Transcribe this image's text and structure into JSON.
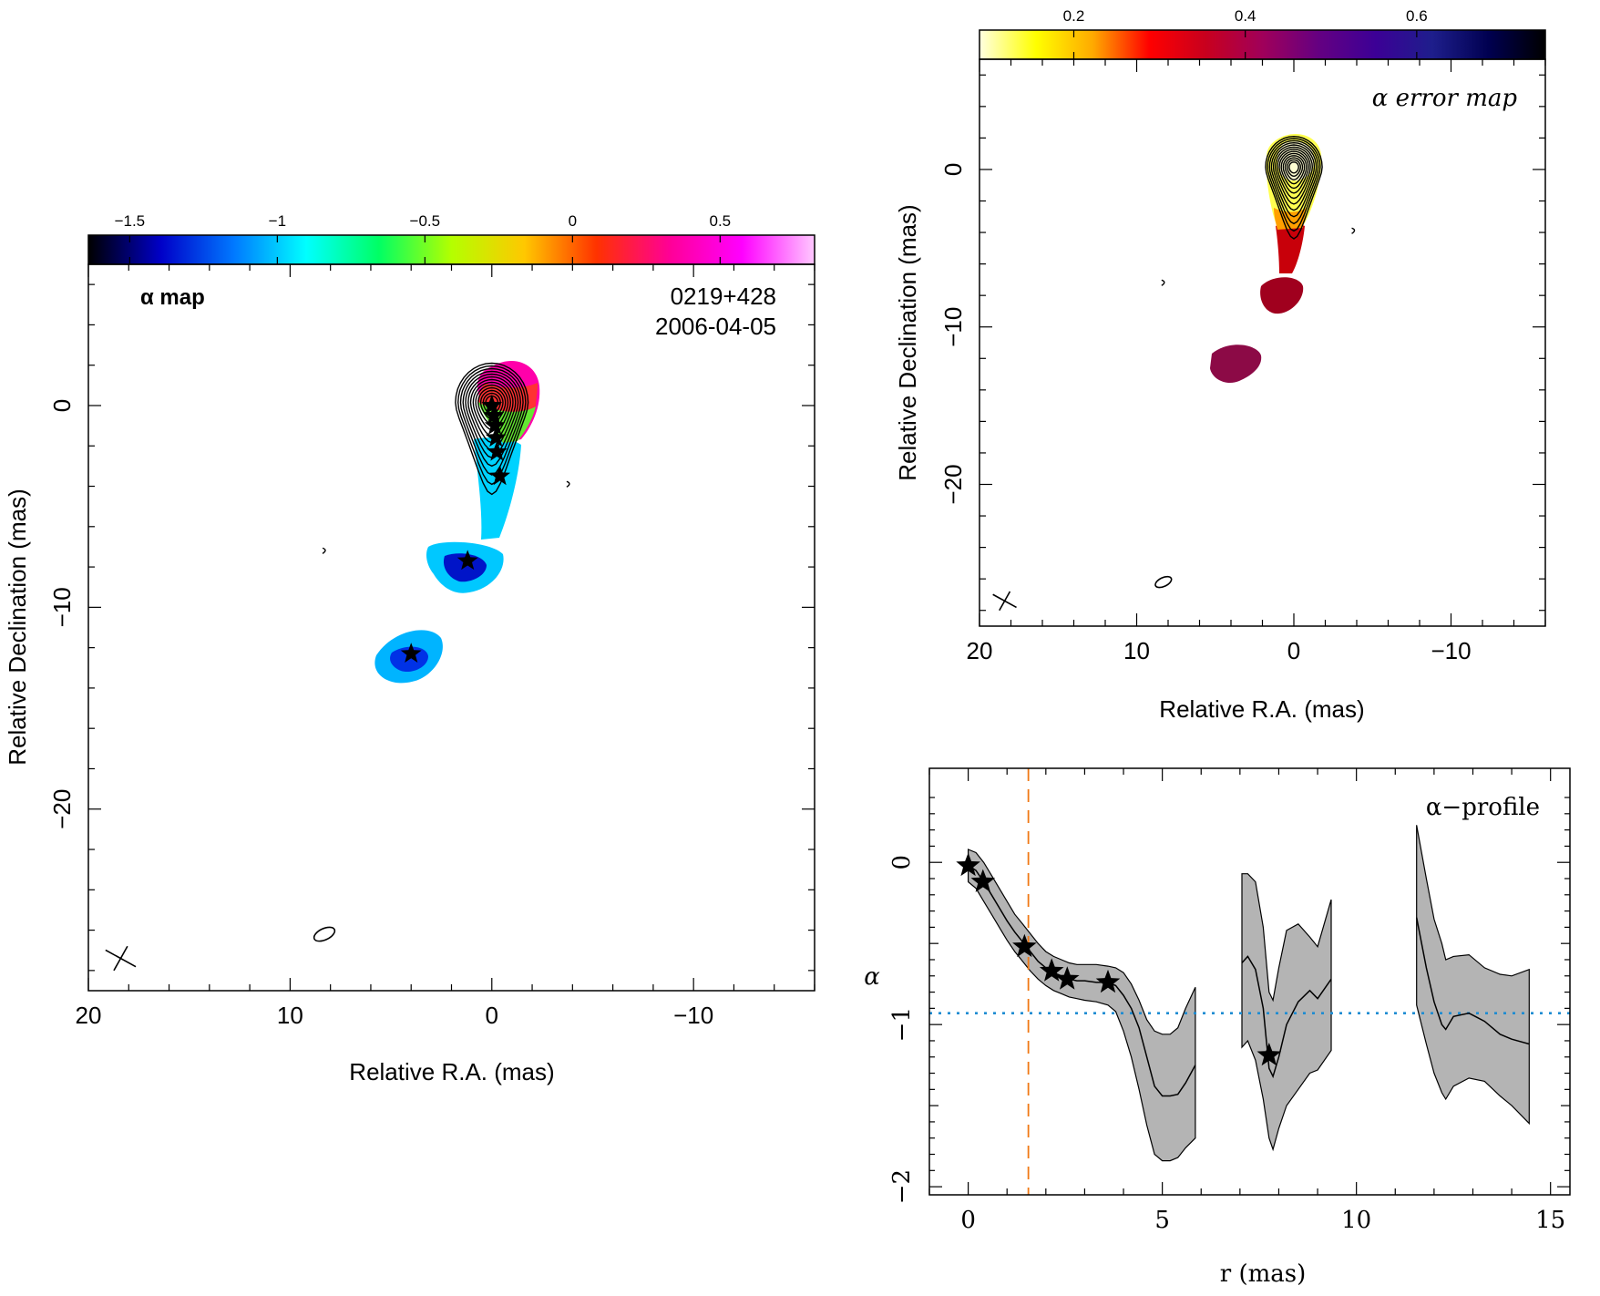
{
  "chart_data": [
    {
      "id": "alpha_map",
      "type": "heatmap",
      "label": "α map",
      "source": "0219+428",
      "date": "2006-04-05",
      "xlabel": "Relative R.A. (mas)",
      "ylabel": "Relative Declination (mas)",
      "xlim": [
        20,
        -16
      ],
      "ylim": [
        -29,
        7
      ],
      "xticks": [
        20,
        10,
        0,
        -10
      ],
      "yticks": [
        0,
        -10,
        -20
      ],
      "colorbar": {
        "range": [
          -1.64,
          0.82
        ],
        "ticks": [
          -1.5,
          -1,
          -0.5,
          0,
          0.5
        ],
        "tick_labels": [
          "−1.5",
          "−1",
          "−0.5",
          "0",
          "0.5"
        ],
        "colormap": [
          "#000000",
          "#0000c8",
          "#0078ff",
          "#00ffff",
          "#00ff64",
          "#b4ff00",
          "#ffc800",
          "#ff3200",
          "#ff0096",
          "#ff00ff",
          "#ffc8ff"
        ]
      },
      "components_xy": [
        [
          0.0,
          0.0
        ],
        [
          -0.1,
          -0.5
        ],
        [
          -0.15,
          -1.0
        ],
        [
          -0.2,
          -1.6
        ],
        [
          -0.25,
          -2.3
        ],
        [
          -0.4,
          -3.5
        ],
        [
          1.2,
          -7.7
        ],
        [
          4.0,
          -12.3
        ]
      ],
      "beam_xy": [
        8.3,
        -26.2
      ],
      "spurious_features_xy": [
        [
          8.3,
          -7.2
        ],
        [
          -3.8,
          -3.9
        ]
      ]
    },
    {
      "id": "alpha_error_map",
      "type": "heatmap",
      "label": "α error map",
      "xlabel": "Relative R.A. (mas)",
      "ylabel": "Relative Declination (mas)",
      "xlim": [
        20,
        -16
      ],
      "ylim": [
        -29,
        7
      ],
      "xticks": [
        20,
        10,
        0,
        -10
      ],
      "yticks": [
        0,
        -10,
        -20
      ],
      "colorbar": {
        "range": [
          0.09,
          0.75
        ],
        "ticks": [
          0.2,
          0.4,
          0.6
        ],
        "tick_labels": [
          "0.2",
          "0.4",
          "0.6"
        ],
        "colormap": [
          "#ffffe0",
          "#ffff00",
          "#ffaa00",
          "#ff0000",
          "#c8001e",
          "#a0005a",
          "#640082",
          "#3c0096",
          "#1e1e8c",
          "#000050",
          "#000000"
        ]
      },
      "beam_xy": [
        8.3,
        -26.2
      ],
      "spurious_features_xy": [
        [
          8.3,
          -7.2
        ],
        [
          -3.8,
          -3.9
        ]
      ]
    },
    {
      "id": "alpha_profile",
      "type": "line",
      "label": "α−profile",
      "xlabel": "r (mas)",
      "ylabel": "α",
      "xlim": [
        -1.0,
        15.5
      ],
      "ylim": [
        -2.05,
        0.58
      ],
      "xticks": [
        0,
        5,
        10,
        15
      ],
      "yticks": [
        0,
        -1,
        -2
      ],
      "ytick_labels": [
        "0",
        "−1",
        "−2"
      ],
      "series": [
        {
          "segments": [
            [
              [
                0.0,
                -0.02
              ],
              [
                0.2,
                -0.05
              ],
              [
                0.4,
                -0.12
              ],
              [
                0.6,
                -0.2
              ],
              [
                0.8,
                -0.28
              ],
              [
                1.0,
                -0.36
              ],
              [
                1.2,
                -0.43
              ],
              [
                1.4,
                -0.49
              ],
              [
                1.6,
                -0.55
              ],
              [
                1.8,
                -0.61
              ],
              [
                2.0,
                -0.65
              ],
              [
                2.2,
                -0.68
              ],
              [
                2.4,
                -0.7
              ],
              [
                2.6,
                -0.72
              ],
              [
                2.8,
                -0.73
              ],
              [
                3.0,
                -0.73
              ],
              [
                3.3,
                -0.74
              ],
              [
                3.6,
                -0.74
              ],
              [
                3.8,
                -0.76
              ],
              [
                4.0,
                -0.82
              ],
              [
                4.2,
                -0.9
              ],
              [
                4.4,
                -1.02
              ],
              [
                4.6,
                -1.2
              ],
              [
                4.8,
                -1.38
              ],
              [
                5.0,
                -1.44
              ],
              [
                5.2,
                -1.44
              ],
              [
                5.4,
                -1.43
              ],
              [
                5.6,
                -1.36
              ],
              [
                5.85,
                -1.25
              ]
            ],
            [
              [
                7.05,
                -0.62
              ],
              [
                7.2,
                -0.58
              ],
              [
                7.4,
                -0.66
              ],
              [
                7.6,
                -0.9
              ],
              [
                7.75,
                -1.27
              ],
              [
                7.85,
                -1.32
              ],
              [
                8.0,
                -1.2
              ],
              [
                8.2,
                -1.0
              ],
              [
                8.5,
                -0.86
              ],
              [
                8.8,
                -0.79
              ],
              [
                9.0,
                -0.84
              ],
              [
                9.35,
                -0.72
              ]
            ],
            [
              [
                11.55,
                -0.34
              ],
              [
                11.8,
                -0.65
              ],
              [
                12.0,
                -0.86
              ],
              [
                12.2,
                -1.0
              ],
              [
                12.3,
                -1.03
              ],
              [
                12.5,
                -0.95
              ],
              [
                12.9,
                -0.93
              ],
              [
                13.3,
                -0.98
              ],
              [
                13.7,
                -1.06
              ],
              [
                14.0,
                -1.09
              ],
              [
                14.45,
                -1.12
              ]
            ]
          ],
          "band_upper": [
            [
              [
                0.0,
                0.08
              ],
              [
                0.2,
                0.06
              ],
              [
                0.4,
                0.0
              ],
              [
                0.6,
                -0.08
              ],
              [
                0.8,
                -0.16
              ],
              [
                1.0,
                -0.24
              ],
              [
                1.2,
                -0.32
              ],
              [
                1.4,
                -0.38
              ],
              [
                1.6,
                -0.44
              ],
              [
                1.8,
                -0.5
              ],
              [
                2.0,
                -0.55
              ],
              [
                2.2,
                -0.58
              ],
              [
                2.4,
                -0.6
              ],
              [
                2.6,
                -0.62
              ],
              [
                2.8,
                -0.63
              ],
              [
                3.0,
                -0.63
              ],
              [
                3.3,
                -0.63
              ],
              [
                3.6,
                -0.64
              ],
              [
                3.8,
                -0.65
              ],
              [
                4.0,
                -0.68
              ],
              [
                4.2,
                -0.75
              ],
              [
                4.4,
                -0.85
              ],
              [
                4.6,
                -0.97
              ],
              [
                4.8,
                -1.04
              ],
              [
                5.0,
                -1.06
              ],
              [
                5.2,
                -1.06
              ],
              [
                5.4,
                -1.02
              ],
              [
                5.6,
                -0.9
              ],
              [
                5.85,
                -0.77
              ]
            ],
            [
              [
                7.05,
                -0.07
              ],
              [
                7.2,
                -0.07
              ],
              [
                7.4,
                -0.12
              ],
              [
                7.6,
                -0.4
              ],
              [
                7.75,
                -0.8
              ],
              [
                7.85,
                -0.85
              ],
              [
                8.0,
                -0.65
              ],
              [
                8.2,
                -0.42
              ],
              [
                8.5,
                -0.38
              ],
              [
                8.8,
                -0.46
              ],
              [
                9.0,
                -0.52
              ],
              [
                9.35,
                -0.23
              ]
            ],
            [
              [
                11.55,
                0.23
              ],
              [
                11.8,
                -0.1
              ],
              [
                12.0,
                -0.35
              ],
              [
                12.2,
                -0.5
              ],
              [
                12.3,
                -0.6
              ],
              [
                12.5,
                -0.58
              ],
              [
                12.9,
                -0.57
              ],
              [
                13.3,
                -0.65
              ],
              [
                13.7,
                -0.69
              ],
              [
                14.0,
                -0.7
              ],
              [
                14.45,
                -0.66
              ]
            ]
          ],
          "band_lower": [
            [
              [
                0.0,
                -0.12
              ],
              [
                0.2,
                -0.16
              ],
              [
                0.4,
                -0.24
              ],
              [
                0.6,
                -0.32
              ],
              [
                0.8,
                -0.4
              ],
              [
                1.0,
                -0.48
              ],
              [
                1.2,
                -0.55
              ],
              [
                1.4,
                -0.61
              ],
              [
                1.6,
                -0.67
              ],
              [
                1.8,
                -0.72
              ],
              [
                2.0,
                -0.76
              ],
              [
                2.2,
                -0.79
              ],
              [
                2.4,
                -0.81
              ],
              [
                2.6,
                -0.83
              ],
              [
                2.8,
                -0.84
              ],
              [
                3.0,
                -0.85
              ],
              [
                3.3,
                -0.86
              ],
              [
                3.6,
                -0.88
              ],
              [
                3.8,
                -0.92
              ],
              [
                4.0,
                -1.04
              ],
              [
                4.2,
                -1.2
              ],
              [
                4.4,
                -1.4
              ],
              [
                4.6,
                -1.62
              ],
              [
                4.8,
                -1.8
              ],
              [
                5.0,
                -1.84
              ],
              [
                5.2,
                -1.84
              ],
              [
                5.4,
                -1.82
              ],
              [
                5.6,
                -1.76
              ],
              [
                5.85,
                -1.7
              ]
            ],
            [
              [
                7.05,
                -1.14
              ],
              [
                7.2,
                -1.1
              ],
              [
                7.4,
                -1.22
              ],
              [
                7.6,
                -1.46
              ],
              [
                7.75,
                -1.7
              ],
              [
                7.85,
                -1.77
              ],
              [
                8.0,
                -1.64
              ],
              [
                8.2,
                -1.5
              ],
              [
                8.5,
                -1.4
              ],
              [
                8.8,
                -1.3
              ],
              [
                9.0,
                -1.28
              ],
              [
                9.35,
                -1.16
              ]
            ],
            [
              [
                11.55,
                -0.88
              ],
              [
                11.8,
                -1.12
              ],
              [
                12.0,
                -1.3
              ],
              [
                12.2,
                -1.42
              ],
              [
                12.3,
                -1.46
              ],
              [
                12.5,
                -1.38
              ],
              [
                12.9,
                -1.33
              ],
              [
                13.3,
                -1.35
              ],
              [
                13.7,
                -1.44
              ],
              [
                14.0,
                -1.5
              ],
              [
                14.45,
                -1.61
              ]
            ]
          ]
        }
      ],
      "markers": [
        [
          0.0,
          -0.02
        ],
        [
          0.38,
          -0.12
        ],
        [
          1.45,
          -0.52
        ],
        [
          2.15,
          -0.67
        ],
        [
          2.55,
          -0.72
        ],
        [
          3.6,
          -0.74
        ],
        [
          7.75,
          -1.19
        ]
      ],
      "hline": -0.93,
      "vline": 1.55,
      "colors": {
        "band": "#b4b4b4",
        "hline": "#1e8cd2",
        "vline": "#f07814"
      }
    }
  ]
}
